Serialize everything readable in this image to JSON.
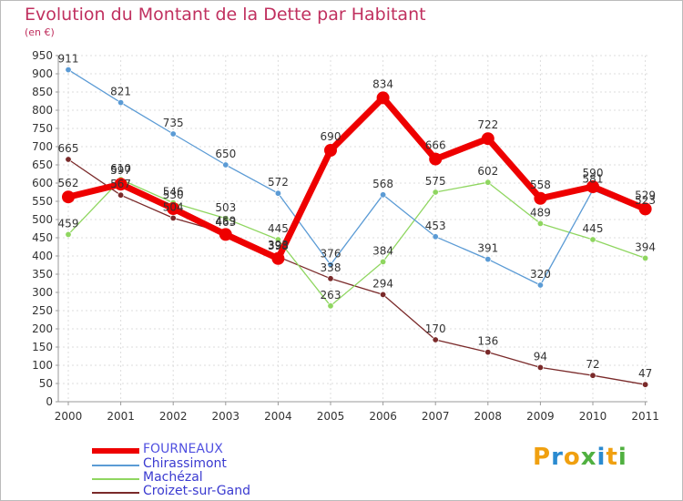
{
  "header": {
    "title": "Evolution du Montant de la Dette par Habitant",
    "subtitle": "(en €)"
  },
  "logo": {
    "text": "Proxiti",
    "colors": [
      "#f0a010",
      "#2a8ad0",
      "#f0a010",
      "#50b040",
      "#2a8ad0",
      "#f0a010",
      "#50b040"
    ]
  },
  "chart_data": {
    "type": "line",
    "title": "Evolution du Montant de la Dette par Habitant",
    "subtitle": "(en €)",
    "x": [
      "2000",
      "2001",
      "2002",
      "2003",
      "2004",
      "2005",
      "2006",
      "2007",
      "2008",
      "2009",
      "2010",
      "2011"
    ],
    "ylim": [
      0,
      950
    ],
    "yticks": [
      0,
      50,
      100,
      150,
      200,
      250,
      300,
      350,
      400,
      450,
      500,
      550,
      600,
      650,
      700,
      750,
      800,
      850,
      900,
      950
    ],
    "grid": true,
    "legend_position": "bottom-left",
    "series": [
      {
        "name": "FOURNEAUX",
        "color": "#ee0000",
        "values": [
          562,
          597,
          530,
          459,
          393,
          690,
          834,
          666,
          722,
          558,
          590,
          529
        ]
      },
      {
        "name": "Chirassimont",
        "color": "#5b9bd5",
        "values": [
          911,
          821,
          735,
          650,
          572,
          376,
          568,
          453,
          391,
          320,
          581,
          523
        ]
      },
      {
        "name": "Machézal",
        "color": "#8fd660",
        "values": [
          459,
          610,
          546,
          503,
          445,
          263,
          384,
          575,
          602,
          489,
          445,
          394
        ]
      },
      {
        "name": "Croizet-sur-Gand",
        "color": "#7a2a2a",
        "values": [
          665,
          567,
          504,
          463,
          398,
          338,
          294,
          170,
          136,
          94,
          72,
          47
        ]
      }
    ]
  }
}
